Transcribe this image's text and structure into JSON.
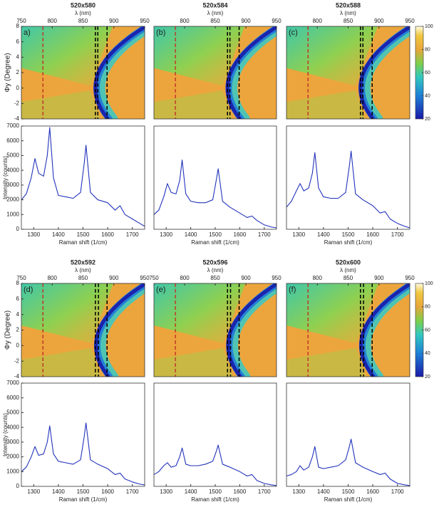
{
  "chart_data": [
    {
      "type": "heatmap",
      "title": "520x580",
      "panel_label": "a)",
      "xlabel": "λ (nm)",
      "ylabel": "Φy (Degree)",
      "xlim": [
        750,
        950
      ],
      "xticks": [
        750,
        800,
        850,
        900,
        950
      ],
      "ylim": [
        -4,
        8
      ],
      "yticks": [
        -4,
        -2,
        0,
        2,
        4,
        6,
        8
      ],
      "vlines": [
        {
          "x": 785,
          "color": "#c0392b"
        },
        {
          "x": 870,
          "color": "#000000"
        },
        {
          "x": 874,
          "color": "#000000"
        },
        {
          "x": 889,
          "color": "#000000"
        }
      ]
    },
    {
      "type": "heatmap",
      "title": "520x584",
      "panel_label": "(b)",
      "xlabel": "λ (nm)",
      "xlim": [
        750,
        950
      ],
      "xticks": [
        800,
        850,
        900,
        950
      ],
      "ylim": [
        -4,
        8
      ],
      "vlines": [
        {
          "x": 785,
          "color": "#c0392b"
        },
        {
          "x": 870,
          "color": "#000000"
        },
        {
          "x": 874,
          "color": "#000000"
        },
        {
          "x": 889,
          "color": "#000000"
        }
      ]
    },
    {
      "type": "heatmap",
      "title": "520x588",
      "panel_label": "(c)",
      "xlabel": "λ (nm)",
      "xlim": [
        750,
        950
      ],
      "xticks": [
        800,
        850,
        900,
        950
      ],
      "ylim": [
        -4,
        8
      ],
      "vlines": [
        {
          "x": 785,
          "color": "#c0392b"
        },
        {
          "x": 870,
          "color": "#000000"
        },
        {
          "x": 874,
          "color": "#000000"
        },
        {
          "x": 889,
          "color": "#000000"
        }
      ],
      "colorbar": {
        "lim": [
          20,
          100
        ],
        "ticks": [
          20,
          40,
          60,
          80,
          100
        ]
      }
    },
    {
      "type": "line",
      "xlabel": "Raman shift (1/cm)",
      "ylabel": "Intensity (counts)",
      "xlim": [
        1250,
        1750
      ],
      "xticks": [
        1300,
        1400,
        1500,
        1600,
        1700
      ],
      "ylim": [
        0,
        7000
      ],
      "yticks": [
        0,
        1000,
        2000,
        3000,
        4000,
        5000,
        6000,
        7000
      ],
      "color": "#2233bb",
      "x": [
        1250,
        1270,
        1290,
        1305,
        1320,
        1340,
        1355,
        1365,
        1380,
        1400,
        1430,
        1460,
        1490,
        1505,
        1512,
        1530,
        1560,
        1600,
        1630,
        1650,
        1670,
        1700,
        1730,
        1750
      ],
      "values": [
        2000,
        2400,
        3500,
        4800,
        3800,
        3600,
        5000,
        6900,
        3500,
        2300,
        2200,
        2100,
        2500,
        4500,
        5700,
        2500,
        2000,
        1800,
        1300,
        1600,
        1000,
        700,
        400,
        200
      ]
    },
    {
      "type": "line",
      "xlabel": "Raman shift (1/cm)",
      "xlim": [
        1250,
        1750
      ],
      "xticks": [
        1300,
        1400,
        1500,
        1600,
        1700
      ],
      "ylim": [
        0,
        7000
      ],
      "color": "#2233bb",
      "x": [
        1250,
        1270,
        1290,
        1305,
        1320,
        1340,
        1355,
        1365,
        1380,
        1400,
        1430,
        1460,
        1490,
        1505,
        1512,
        1530,
        1560,
        1600,
        1630,
        1650,
        1670,
        1700,
        1730,
        1750
      ],
      "values": [
        1000,
        1300,
        2200,
        3100,
        2500,
        2400,
        3300,
        4700,
        2400,
        1900,
        1800,
        1800,
        2000,
        3400,
        4100,
        1900,
        1500,
        1100,
        800,
        900,
        600,
        300,
        150,
        100
      ]
    },
    {
      "type": "line",
      "xlabel": "Raman shift (1/cm)",
      "xlim": [
        1250,
        1750
      ],
      "xticks": [
        1300,
        1400,
        1500,
        1600,
        1700
      ],
      "ylim": [
        0,
        7000
      ],
      "color": "#2233bb",
      "x": [
        1250,
        1270,
        1290,
        1305,
        1320,
        1340,
        1355,
        1365,
        1380,
        1400,
        1430,
        1460,
        1490,
        1505,
        1512,
        1530,
        1560,
        1600,
        1630,
        1650,
        1670,
        1700,
        1730,
        1750
      ],
      "values": [
        1500,
        1900,
        2600,
        3100,
        2600,
        2800,
        3800,
        5200,
        2800,
        2200,
        2100,
        2100,
        2500,
        4300,
        5300,
        2400,
        2000,
        1600,
        1100,
        1200,
        700,
        400,
        200,
        100
      ]
    },
    {
      "type": "heatmap",
      "title": "520x592",
      "panel_label": "(d)",
      "xlabel": "λ (nm)",
      "ylabel": "Φy (Degree)",
      "xlim": [
        750,
        950
      ],
      "xticks": [
        750,
        800,
        850,
        900,
        950
      ],
      "ylim": [
        -4,
        8
      ],
      "yticks": [
        -4,
        -2,
        0,
        2,
        4,
        6,
        8
      ],
      "vlines": [
        {
          "x": 785,
          "color": "#c0392b"
        },
        {
          "x": 870,
          "color": "#000000"
        },
        {
          "x": 875,
          "color": "#000000"
        },
        {
          "x": 889,
          "color": "#000000"
        }
      ]
    },
    {
      "type": "heatmap",
      "title": "520x596",
      "panel_label": "(e)",
      "xlabel": "λ (nm)",
      "xlim": [
        750,
        950
      ],
      "xticks": [
        750,
        800,
        850,
        900,
        950
      ],
      "ylim": [
        -4,
        8
      ],
      "vlines": [
        {
          "x": 785,
          "color": "#c0392b"
        },
        {
          "x": 870,
          "color": "#000000"
        },
        {
          "x": 875,
          "color": "#000000"
        },
        {
          "x": 889,
          "color": "#000000"
        }
      ]
    },
    {
      "type": "heatmap",
      "title": "520x600",
      "panel_label": "(f)",
      "xlabel": "λ (nm)",
      "xlim": [
        750,
        950
      ],
      "xticks": [
        800,
        850,
        900,
        950
      ],
      "ylim": [
        -4,
        8
      ],
      "vlines": [
        {
          "x": 785,
          "color": "#c0392b"
        },
        {
          "x": 870,
          "color": "#000000"
        },
        {
          "x": 875,
          "color": "#000000"
        },
        {
          "x": 889,
          "color": "#000000"
        }
      ],
      "colorbar": {
        "lim": [
          20,
          100
        ],
        "ticks": [
          20,
          40,
          60,
          80,
          100
        ]
      }
    },
    {
      "type": "line",
      "xlabel": "Raman shift (1/cm)",
      "ylabel": "Intensity (counts)",
      "xlim": [
        1250,
        1750
      ],
      "xticks": [
        1300,
        1400,
        1500,
        1600,
        1700
      ],
      "ylim": [
        0,
        7000
      ],
      "yticks": [
        0,
        1000,
        2000,
        3000,
        4000,
        5000,
        6000,
        7000
      ],
      "color": "#2233bb",
      "x": [
        1250,
        1270,
        1290,
        1305,
        1320,
        1340,
        1355,
        1365,
        1380,
        1400,
        1430,
        1460,
        1490,
        1505,
        1512,
        1530,
        1560,
        1600,
        1630,
        1650,
        1670,
        1700,
        1730,
        1750
      ],
      "values": [
        1000,
        1300,
        2000,
        2700,
        2100,
        2200,
        3000,
        4100,
        2200,
        1700,
        1600,
        1500,
        1800,
        3400,
        4300,
        1800,
        1500,
        1200,
        800,
        900,
        500,
        300,
        150,
        100
      ]
    },
    {
      "type": "line",
      "xlabel": "Raman shift (1/cm)",
      "xlim": [
        1250,
        1750
      ],
      "xticks": [
        1300,
        1400,
        1500,
        1600,
        1700
      ],
      "ylim": [
        0,
        7000
      ],
      "color": "#2233bb",
      "x": [
        1250,
        1270,
        1290,
        1305,
        1320,
        1340,
        1355,
        1365,
        1380,
        1400,
        1430,
        1460,
        1490,
        1505,
        1512,
        1530,
        1560,
        1600,
        1630,
        1650,
        1670,
        1700,
        1730,
        1750
      ],
      "values": [
        800,
        1000,
        1400,
        1600,
        1300,
        1400,
        2000,
        2600,
        1500,
        1400,
        1400,
        1500,
        1700,
        2400,
        2800,
        1500,
        1300,
        1000,
        700,
        800,
        400,
        200,
        100,
        50
      ]
    },
    {
      "type": "line",
      "xlabel": "Raman shift (1/cm)",
      "xlim": [
        1250,
        1750
      ],
      "xticks": [
        1300,
        1400,
        1500,
        1600,
        1700
      ],
      "ylim": [
        0,
        7000
      ],
      "color": "#2233bb",
      "x": [
        1250,
        1270,
        1290,
        1305,
        1320,
        1340,
        1355,
        1365,
        1380,
        1400,
        1430,
        1460,
        1490,
        1505,
        1512,
        1530,
        1560,
        1600,
        1630,
        1650,
        1670,
        1700,
        1730,
        1750
      ],
      "values": [
        700,
        800,
        1000,
        1400,
        1100,
        1300,
        2000,
        2700,
        1300,
        1200,
        1300,
        1400,
        1800,
        2700,
        3200,
        1600,
        1300,
        1000,
        800,
        900,
        500,
        200,
        100,
        50
      ]
    }
  ]
}
